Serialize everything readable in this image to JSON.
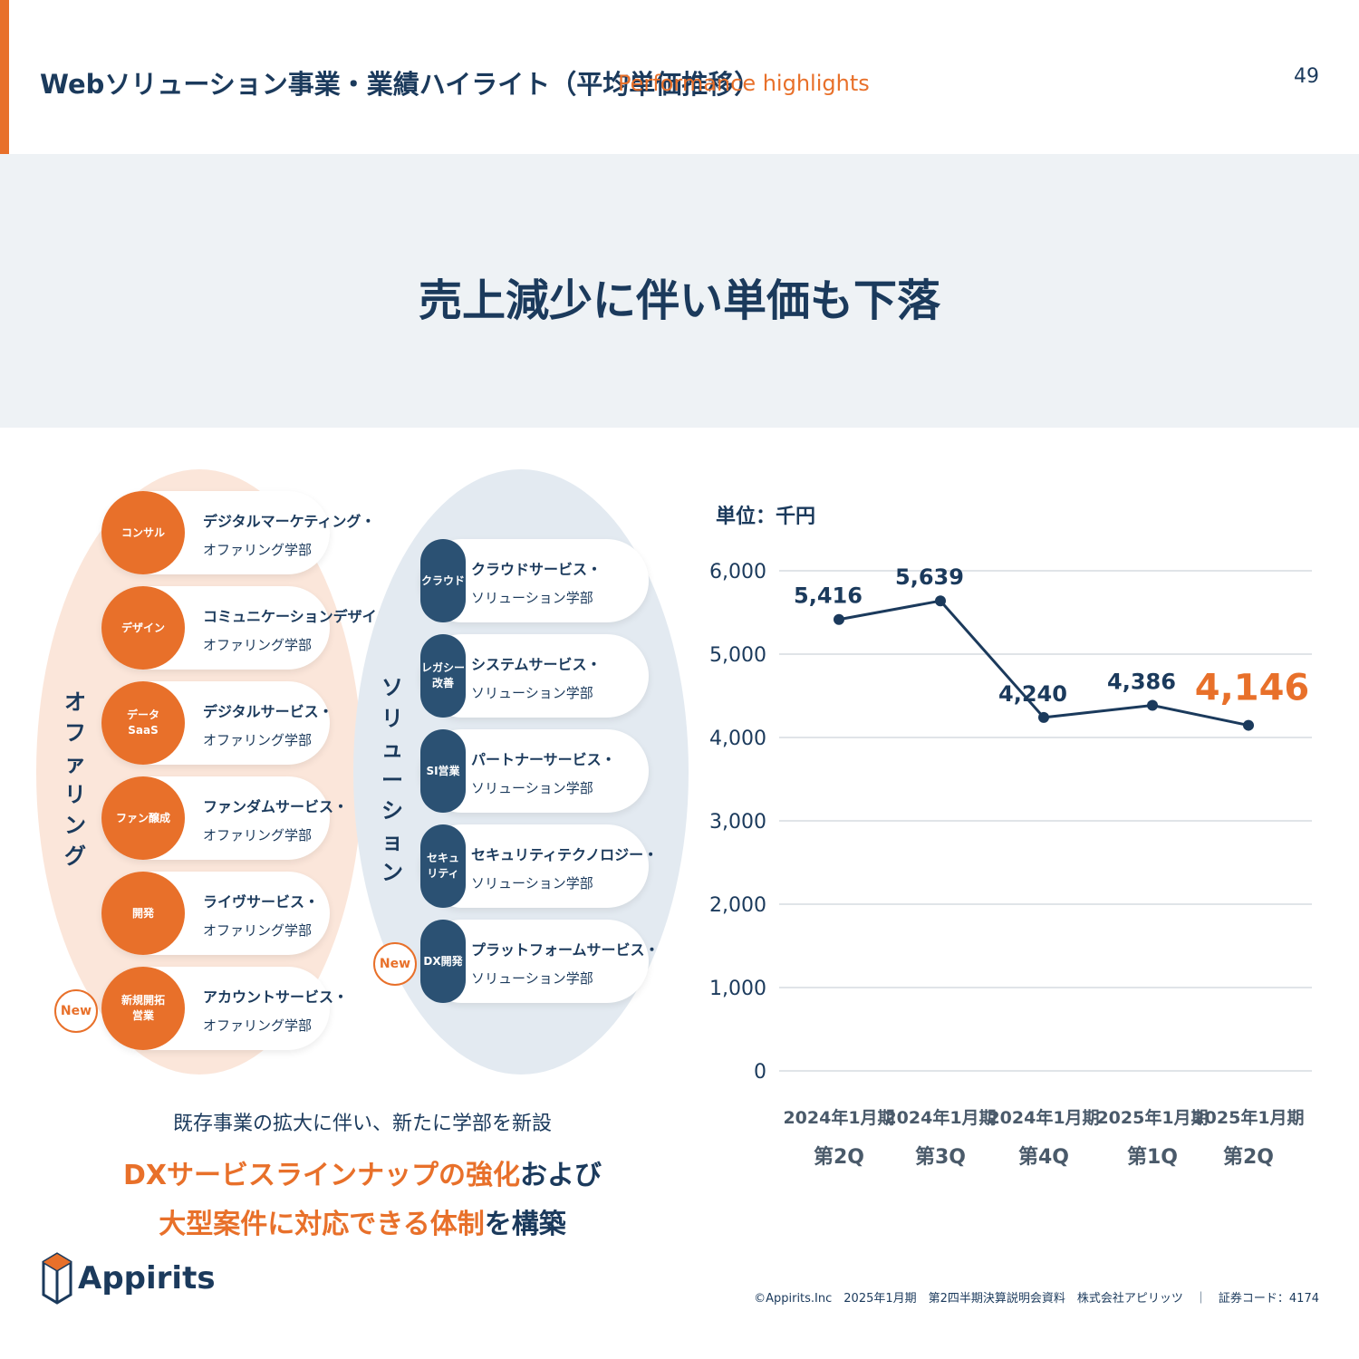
{
  "header": {
    "title": "Webソリューション事業・業績ハイライト（平均単価推移）",
    "title_en": "Performance highlights",
    "page_number": "49"
  },
  "banner": {
    "headline": "売上減少に伴い単価も下落"
  },
  "offering": {
    "label": "オファリング",
    "cards": [
      {
        "tag": "コンサル",
        "line1": "デジタルマーケティング・",
        "line2": "オファリング学部"
      },
      {
        "tag": "デザイン",
        "line1": "コミュニケーションデザイン・",
        "line2": "オファリング学部"
      },
      {
        "tag": "データ\nSaaS",
        "line1": "デジタルサービス・",
        "line2": "オファリング学部"
      },
      {
        "tag": "ファン醸成",
        "line1": "ファンダムサービス・",
        "line2": "オファリング学部"
      },
      {
        "tag": "開発",
        "line1": "ライヴサービス・",
        "line2": "オファリング学部"
      },
      {
        "tag": "新規開拓\n営業",
        "line1": "アカウントサービス・",
        "line2": "オファリング学部"
      }
    ]
  },
  "solution": {
    "label": "ソリューション",
    "cards": [
      {
        "tag": "クラウド",
        "line1": "クラウドサービス・",
        "line2": "ソリューション学部"
      },
      {
        "tag": "レガシー\n改善",
        "line1": "システムサービス・",
        "line2": "ソリューション学部"
      },
      {
        "tag": "SI営業",
        "line1": "パートナーサービス・",
        "line2": "ソリューション学部"
      },
      {
        "tag": "セキュ\nリティ",
        "line1": "セキュリティテクノロジー・",
        "line2": "ソリューション学部"
      },
      {
        "tag": "DX開発",
        "line1": "プラットフォームサービス・",
        "line2": "ソリューション学部"
      }
    ]
  },
  "badges": {
    "new": "New"
  },
  "caption": {
    "line1": "既存事業の拡大に伴い、新たに学部を新設",
    "line2_highlight": "DXサービスラインナップの強化",
    "line2_rest": "および",
    "line3_highlight": "大型案件に対応できる体制",
    "line3_rest": "を構築"
  },
  "logo": {
    "text": "Appirits"
  },
  "footer": {
    "text": "©Appirits.Inc　2025年1月期　第2四半期決算説明会資料　株式会社アピリッツ　｜　証券コード：4174"
  },
  "colors": {
    "orange": "#e8702a",
    "navy": "#1b3a5c",
    "grid": "#d6dbe0"
  },
  "chart_data": {
    "type": "line",
    "unit_label": "単位：千円",
    "categories": [
      [
        "2024年1月期",
        "第2Q"
      ],
      [
        "2024年1月期",
        "第3Q"
      ],
      [
        "2024年1月期",
        "第4Q"
      ],
      [
        "2025年1月期",
        "第1Q"
      ],
      [
        "2025年1月期",
        "第2Q"
      ]
    ],
    "values": [
      5416,
      5639,
      4240,
      4386,
      4146
    ],
    "value_labels": [
      "5,416",
      "5,639",
      "4,240",
      "4,386",
      "4,146"
    ],
    "yticks": [
      0,
      1000,
      2000,
      3000,
      4000,
      5000,
      6000
    ],
    "ytick_labels": [
      "0",
      "1,000",
      "2,000",
      "3,000",
      "4,000",
      "5,000",
      "6,000"
    ],
    "ylim": [
      0,
      6000
    ],
    "highlight_index": 4,
    "grid": true
  }
}
